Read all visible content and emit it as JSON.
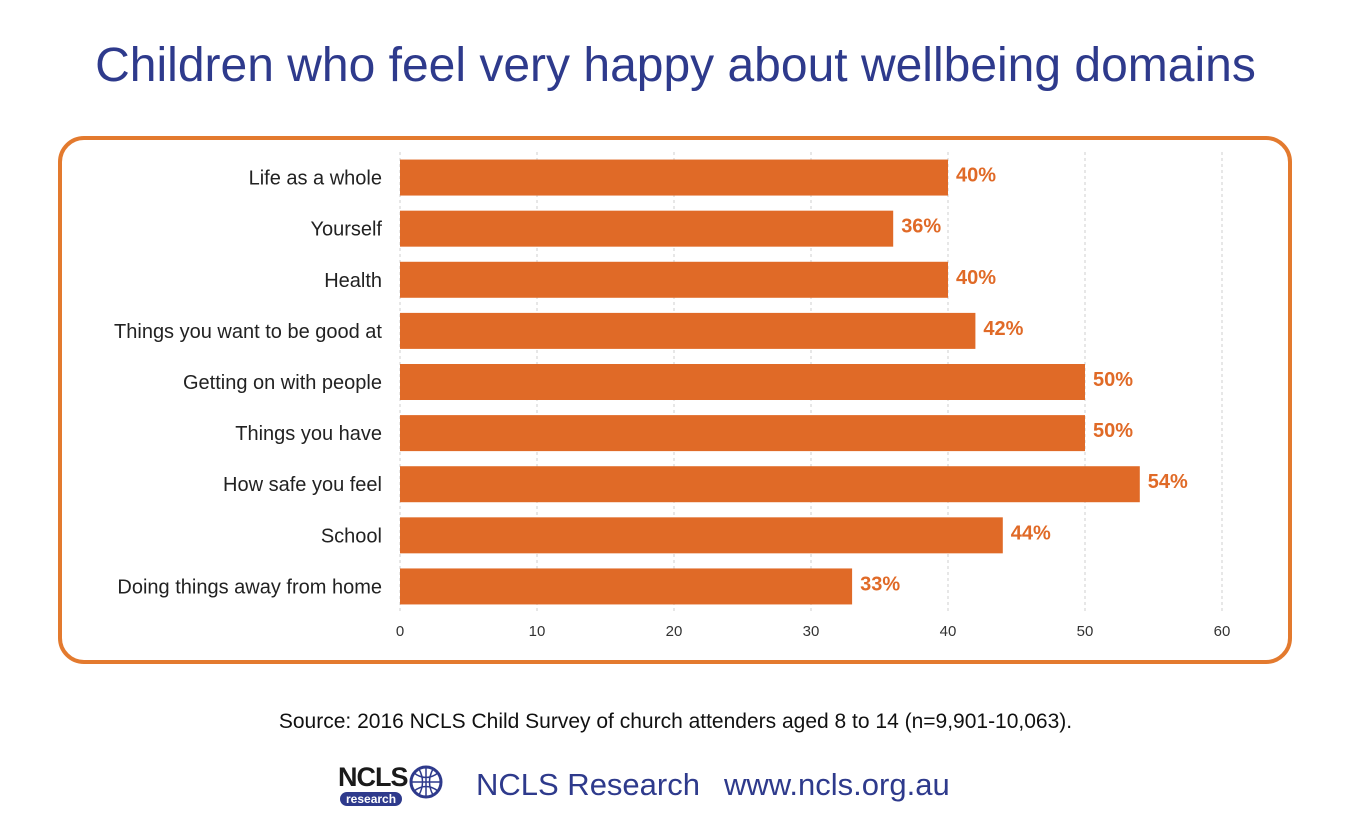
{
  "title": "Children who feel very happy about wellbeing domains",
  "source": "Source: 2016 NCLS Child Survey of church attenders aged 8 to 14 (n=9,901-10,063).",
  "footer": {
    "logo_text": "NCLS",
    "logo_subtext": "research",
    "org": "NCLS Research",
    "website": "www.ncls.org.au"
  },
  "colors": {
    "bar": "#e06a27",
    "label": "#e06a27",
    "title": "#2e3a8c",
    "frame": "#e37a2e"
  },
  "chart_data": {
    "type": "bar",
    "orientation": "horizontal",
    "categories": [
      "Life as a whole",
      "Yourself",
      "Health",
      "Things you want to be good at",
      "Getting on with people",
      "Things you have",
      "How safe you feel",
      "School",
      "Doing things away from home"
    ],
    "values": [
      40,
      36,
      40,
      42,
      50,
      50,
      54,
      44,
      33
    ],
    "data_labels": [
      "40%",
      "36%",
      "40%",
      "42%",
      "50%",
      "50%",
      "54%",
      "44%",
      "33%"
    ],
    "x_ticks": [
      0,
      10,
      20,
      30,
      40,
      50,
      60
    ],
    "xlim": [
      0,
      60
    ],
    "grid": true,
    "legend": "none"
  }
}
